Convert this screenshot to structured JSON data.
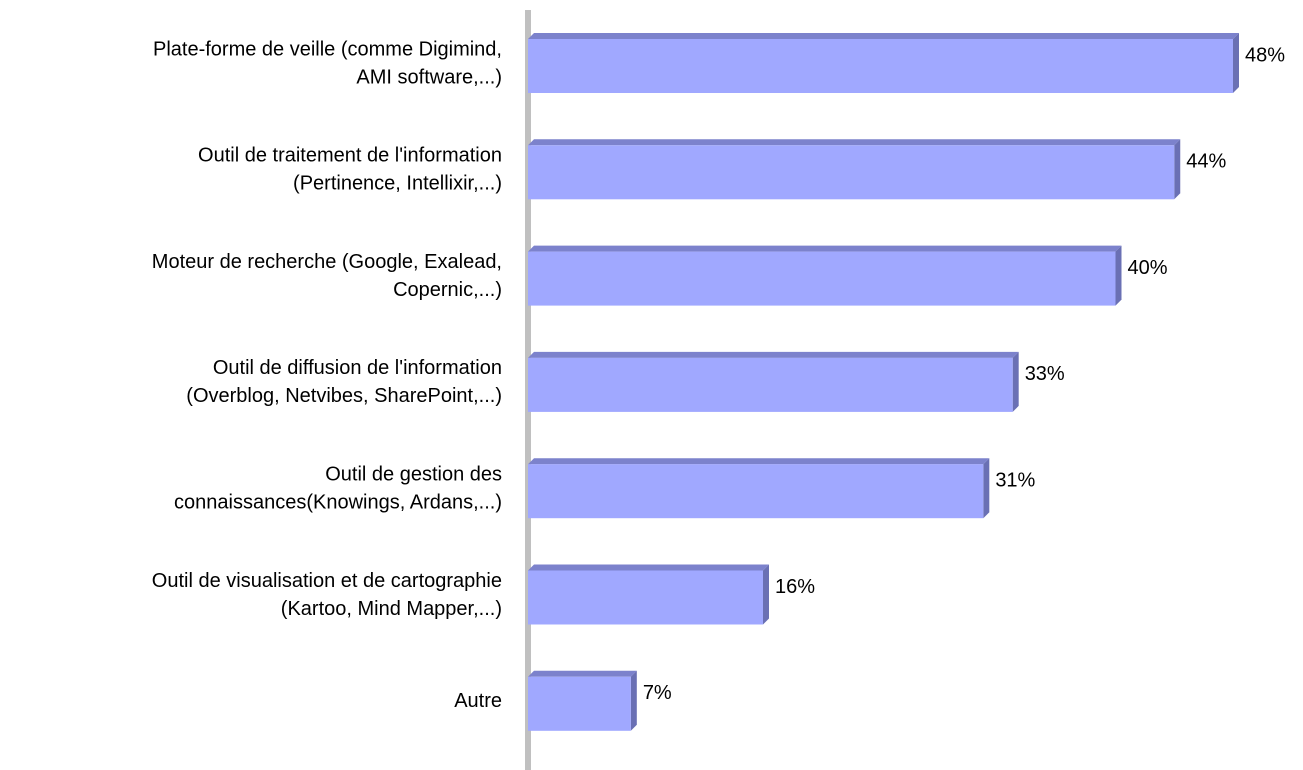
{
  "chart_data": {
    "type": "bar",
    "orientation": "horizontal",
    "categories": [
      [
        "Plate-forme de veille (comme Digimind,",
        "AMI software,...)"
      ],
      [
        "Outil de traitement de l'information",
        "(Pertinence, Intellixir,...)"
      ],
      [
        "Moteur de recherche (Google, Exalead,",
        "Copernic,...)"
      ],
      [
        "Outil de diffusion de l'information",
        "(Overblog, Netvibes, SharePoint,...)"
      ],
      [
        "Outil de gestion des",
        "connaissances(Knowings, Ardans,...)"
      ],
      [
        "Outil de visualisation et de cartographie",
        "(Kartoo, Mind Mapper,...)"
      ],
      [
        "Autre"
      ]
    ],
    "values": [
      48,
      44,
      40,
      33,
      31,
      16,
      7
    ],
    "value_labels": [
      "48%",
      "44%",
      "40%",
      "33%",
      "31%",
      "16%",
      "7%"
    ],
    "color": "#a0a8ff"
  }
}
